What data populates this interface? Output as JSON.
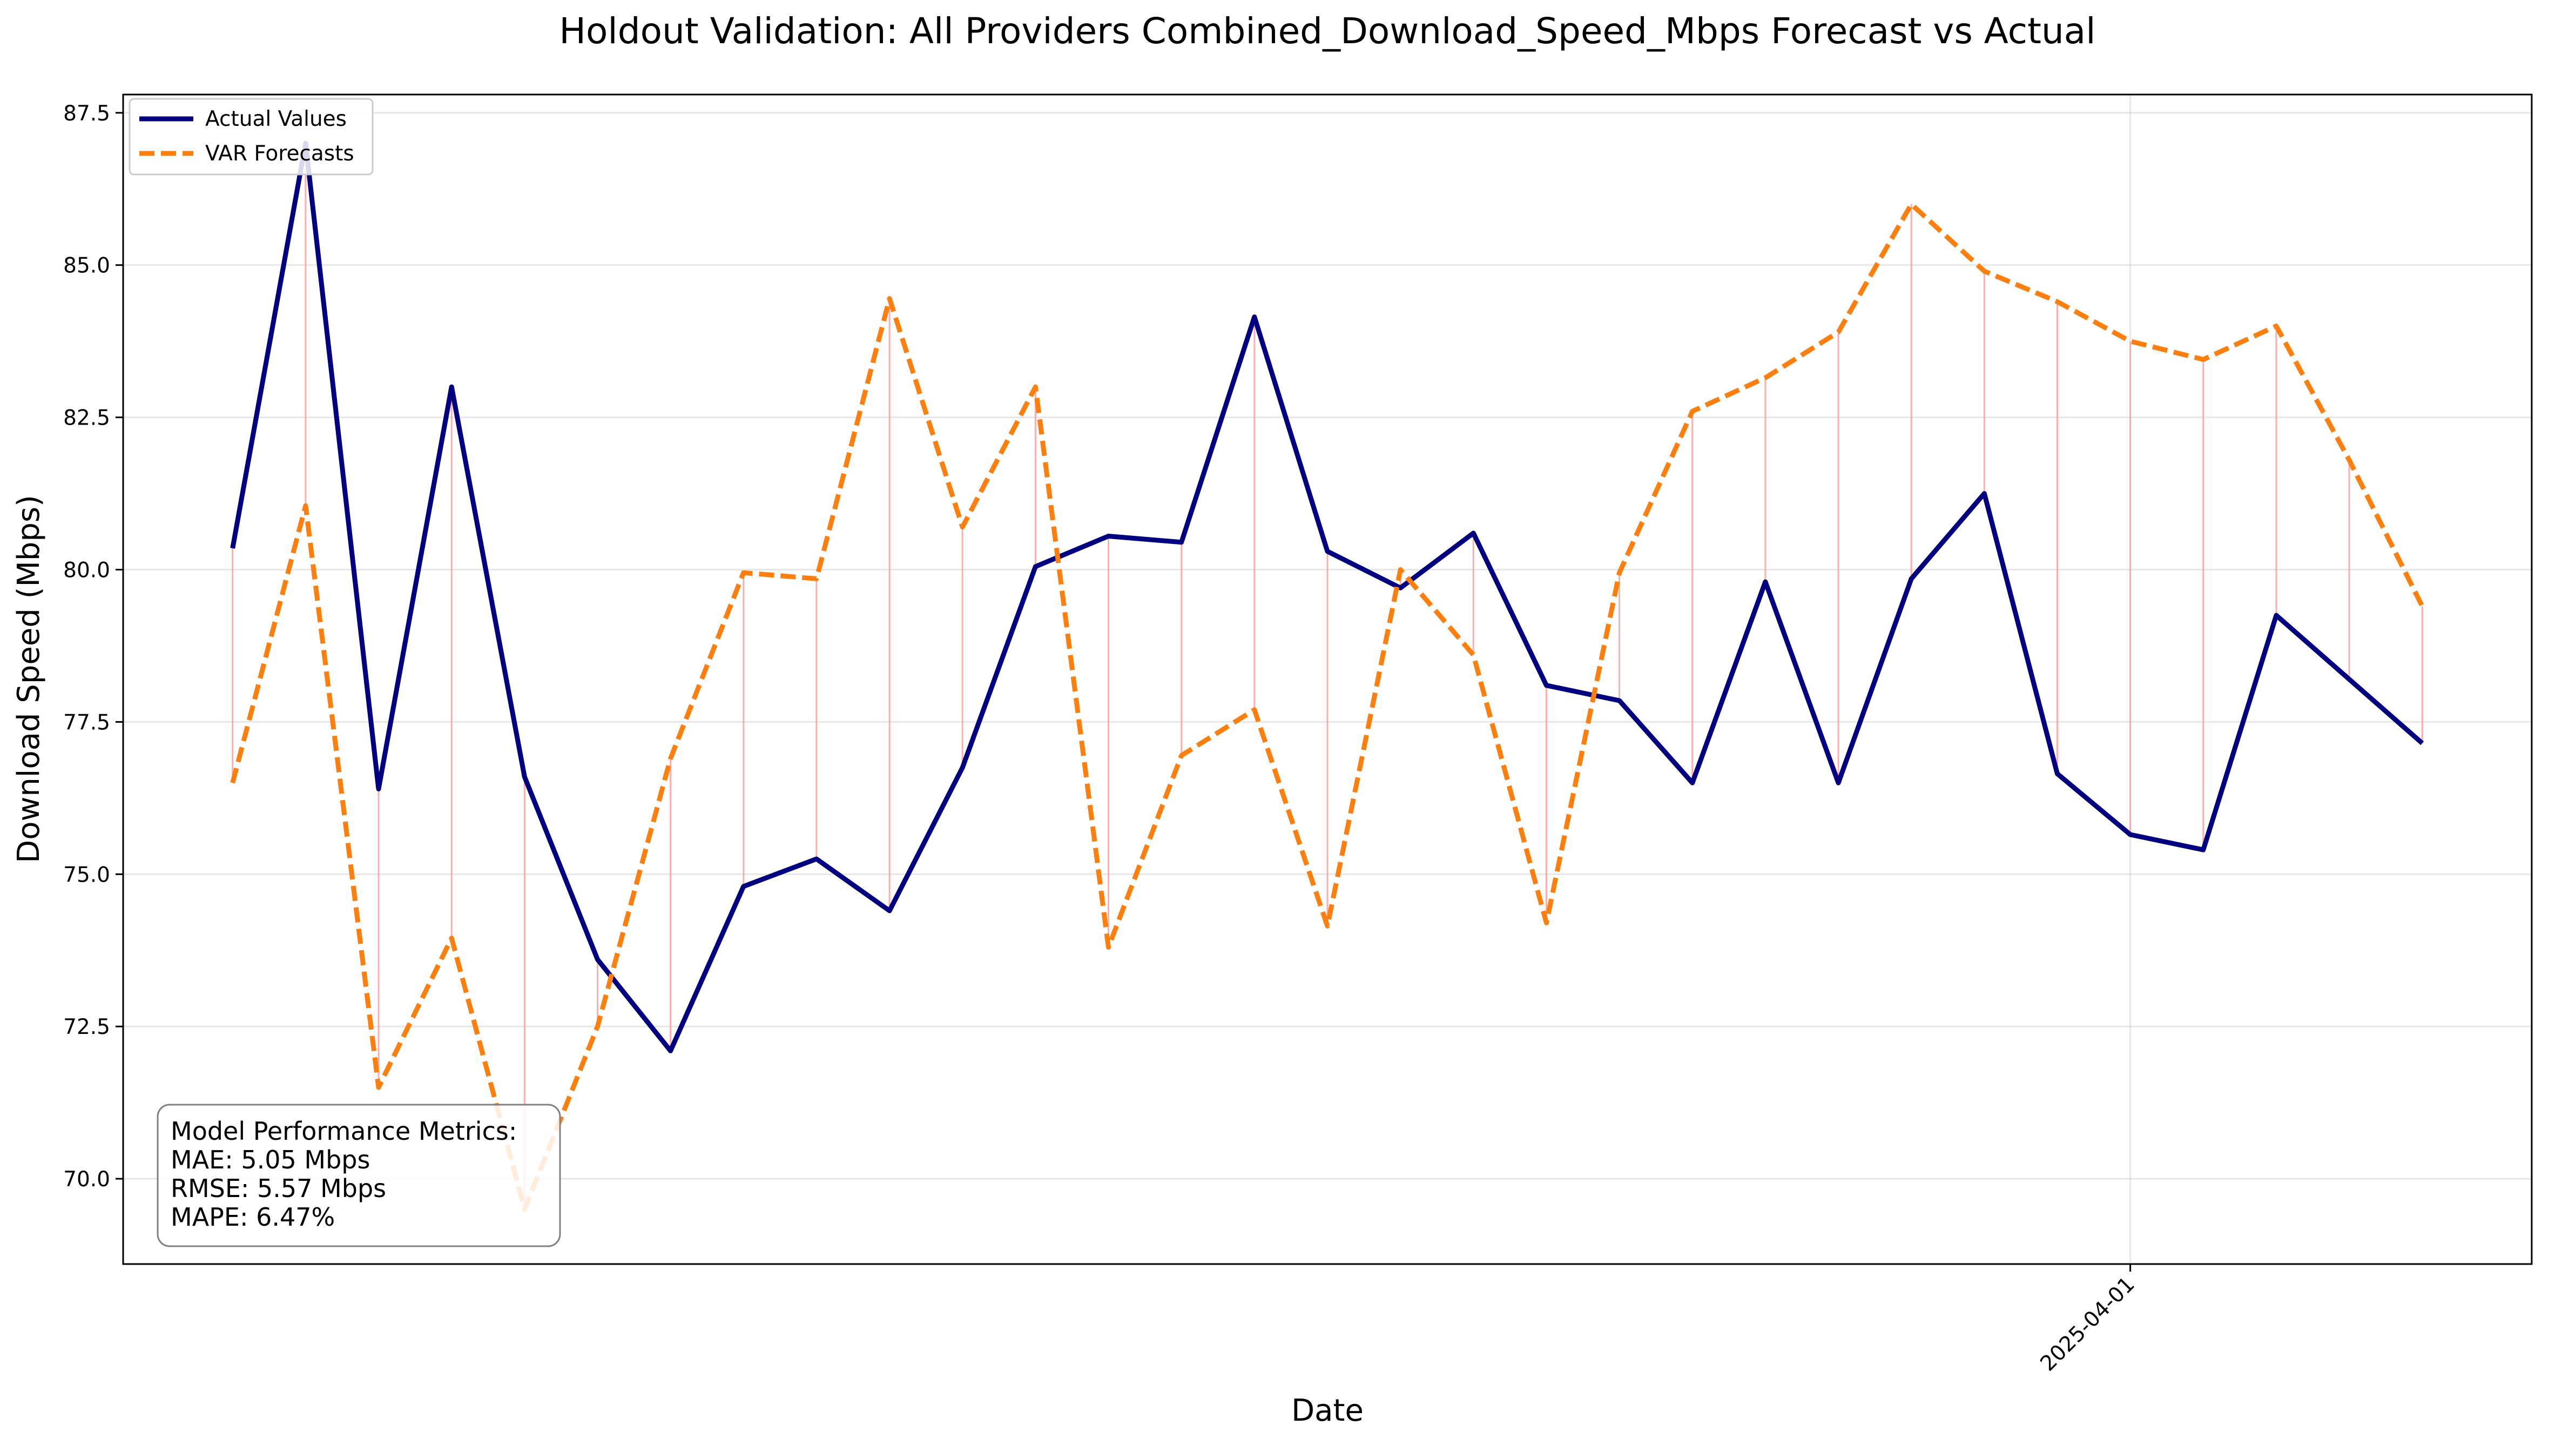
{
  "chart_data": {
    "type": "line",
    "title": "Holdout Validation: All Providers Combined_Download_Speed_Mbps Forecast vs Actual",
    "xlabel": "Date",
    "ylabel": "Download Speed (Mbps)",
    "ylim": [
      68.6,
      87.8
    ],
    "yticks": [
      70.0,
      72.5,
      75.0,
      77.5,
      80.0,
      82.5,
      85.0,
      87.5
    ],
    "ytick_labels": [
      "70.0",
      "72.5",
      "75.0",
      "77.5",
      "80.0",
      "82.5",
      "85.0",
      "87.5"
    ],
    "xlim": [
      -1.5,
      31.5
    ],
    "xtick_labels": [
      {
        "index": 26,
        "label": "2025-04-01"
      }
    ],
    "grid": true,
    "legend_position": "upper-left",
    "x": [
      0,
      1,
      2,
      3,
      4,
      5,
      6,
      7,
      8,
      9,
      10,
      11,
      12,
      13,
      14,
      15,
      16,
      17,
      18,
      19,
      20,
      21,
      22,
      23,
      24,
      25,
      26,
      27,
      28,
      29,
      30
    ],
    "series": [
      {
        "name": "Actual Values",
        "color": "#000080",
        "style": "solid",
        "values": [
          80.35,
          87.0,
          76.4,
          83.0,
          76.6,
          73.6,
          72.1,
          74.8,
          75.25,
          74.4,
          76.75,
          80.05,
          80.55,
          80.45,
          84.15,
          80.3,
          79.7,
          80.6,
          78.1,
          77.85,
          76.5,
          79.8,
          76.5,
          79.85,
          81.25,
          76.65,
          75.65,
          75.4,
          79.25,
          78.2,
          77.15
        ]
      },
      {
        "name": "VAR Forecasts",
        "color": "#ff7f0e",
        "style": "dashed",
        "values": [
          76.5,
          81.05,
          71.5,
          73.95,
          69.5,
          72.5,
          76.9,
          79.95,
          79.85,
          84.45,
          80.7,
          83.0,
          73.8,
          76.95,
          77.7,
          74.15,
          80.0,
          78.6,
          74.2,
          79.95,
          82.6,
          83.15,
          83.9,
          86.0,
          84.9,
          84.4,
          83.75,
          83.45,
          84.0,
          81.8,
          79.4
        ]
      }
    ],
    "error_line_color": "#ff9999",
    "annotation": {
      "lines": [
        "Model Performance Metrics:",
        "MAE: 5.05 Mbps",
        "RMSE: 5.57 Mbps",
        "MAPE: 6.47%"
      ]
    }
  }
}
